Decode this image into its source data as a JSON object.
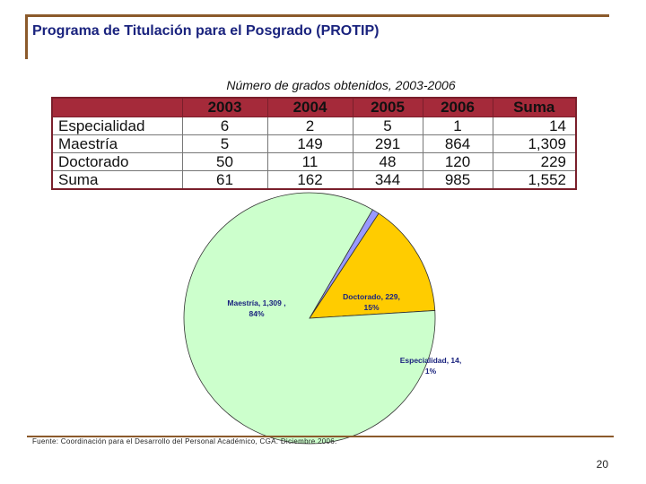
{
  "header": {
    "title": "Programa de Titulación para el Posgrado (PROTIP)"
  },
  "table": {
    "caption": "Número de grados obtenidos, 2003-2006",
    "columns": [
      "",
      "2003",
      "2004",
      "2005",
      "2006",
      "Suma"
    ],
    "rows": [
      [
        "Especialidad",
        "6",
        "2",
        "5",
        "1",
        "14"
      ],
      [
        "Maestría",
        "5",
        "149",
        "291",
        "864",
        "1,309"
      ],
      [
        "Doctorado",
        "50",
        "11",
        "48",
        "120",
        "229"
      ],
      [
        "Suma",
        "61",
        "162",
        "344",
        "985",
        "1,552"
      ]
    ]
  },
  "chart_data": {
    "type": "pie",
    "title": "",
    "slices": [
      {
        "name": "Doctorado",
        "value": 229,
        "label_line1": "Doctorado, 229,",
        "label_line2": "15%",
        "color": "#ffcc00"
      },
      {
        "name": "Especialidad",
        "value": 14,
        "label_line1": "Especialidad, 14,",
        "label_line2": "1%",
        "color": "#9999ff"
      },
      {
        "name": "Maestría",
        "value": 1309,
        "label_line1": "Maestría, 1,309 ,",
        "label_line2": "84%",
        "color": "#ccffcc"
      }
    ],
    "label_color": "#1a237e"
  },
  "footer": {
    "source": "Fuente: Coordinación para el Desarrollo del Personal Académico, CGA. Diciembre 2006.",
    "page": "20"
  }
}
